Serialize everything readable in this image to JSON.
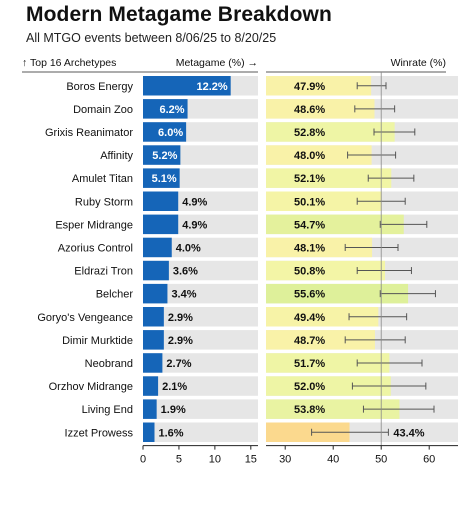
{
  "title": "Modern Metagame Breakdown",
  "subtitle": "All MTGO events between 8/06/25 to 8/20/25",
  "chart_data": {
    "type": "bar",
    "left_header": "↑ Top 16 Archetypes",
    "categories": [
      "Boros Energy",
      "Domain Zoo",
      "Grixis Reanimator",
      "Affinity",
      "Amulet Titan",
      "Ruby Storm",
      "Esper Midrange",
      "Azorius Control",
      "Eldrazi Tron",
      "Belcher",
      "Goryo's Vengeance",
      "Dimir Murktide",
      "Neobrand",
      "Orzhov Midrange",
      "Living End",
      "Izzet Prowess"
    ],
    "metagame": {
      "label": "Metagame (%) →",
      "values": [
        12.2,
        6.2,
        6.0,
        5.2,
        5.1,
        4.9,
        4.9,
        4.0,
        3.6,
        3.4,
        2.9,
        2.9,
        2.7,
        2.1,
        1.9,
        1.6
      ],
      "value_labels": [
        "12.2%",
        "6.2%",
        "6.0%",
        "5.2%",
        "5.1%",
        "4.9%",
        "4.9%",
        "4.0%",
        "3.6%",
        "3.4%",
        "2.9%",
        "2.9%",
        "2.7%",
        "2.1%",
        "1.9%",
        "1.6%"
      ],
      "xlim": [
        0,
        16
      ],
      "ticks": [
        0,
        5,
        10,
        15
      ],
      "bar_color": "#1565b8",
      "track_color": "#e6e6e6"
    },
    "winrate": {
      "label": "Winrate (%)",
      "values": [
        47.9,
        48.6,
        52.8,
        48.0,
        52.1,
        50.1,
        54.7,
        48.1,
        50.8,
        55.6,
        49.4,
        48.7,
        51.7,
        52.0,
        53.8,
        43.4
      ],
      "value_labels": [
        "47.9%",
        "48.6%",
        "52.8%",
        "48.0%",
        "52.1%",
        "50.1%",
        "54.7%",
        "48.1%",
        "50.8%",
        "55.6%",
        "49.4%",
        "48.7%",
        "51.7%",
        "52.0%",
        "53.8%",
        "43.4%"
      ],
      "ci_low": [
        45.0,
        44.5,
        48.5,
        43.0,
        47.3,
        45.0,
        49.8,
        42.5,
        45.0,
        49.8,
        43.3,
        42.5,
        45.0,
        44.0,
        46.3,
        35.5
      ],
      "ci_high": [
        51.0,
        52.8,
        57.0,
        53.0,
        56.8,
        55.0,
        59.5,
        53.5,
        56.3,
        61.3,
        55.3,
        55.0,
        58.5,
        59.3,
        61.0,
        51.5
      ],
      "xlim": [
        26,
        66
      ],
      "ticks": [
        30,
        40,
        50,
        60
      ],
      "reference_line": 50,
      "colors": [
        "#f9f2a8",
        "#f9f2a8",
        "#eef5a5",
        "#f9f2a8",
        "#f1f5a5",
        "#f5f4a6",
        "#e4f19c",
        "#f9f2a8",
        "#f3f5a6",
        "#def09a",
        "#f7f3a7",
        "#f9f2a8",
        "#eff5a5",
        "#eef5a5",
        "#e9f3a2",
        "#fbd98e"
      ],
      "track_color": "#e6e6e6"
    }
  }
}
